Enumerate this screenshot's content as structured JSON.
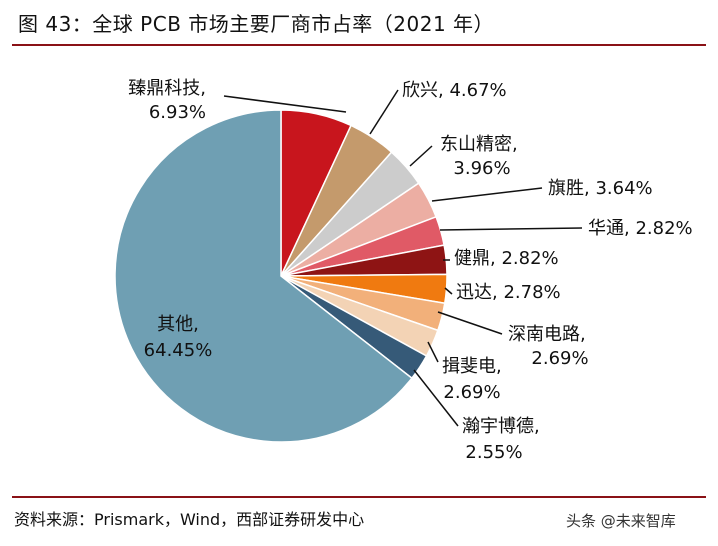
{
  "title": "图 43：全球 PCB 市场主要厂商市占率（2021 年）",
  "source": "资料来源：Prismark，Wind，西部证券研发中心",
  "watermark": "头条 @未来智库",
  "chart_data": {
    "type": "pie",
    "title": "图 43：全球 PCB 市场主要厂商市占率（2021 年）",
    "slices": [
      {
        "label": "臻鼎科技,",
        "value_label": "6.93%",
        "value": 6.93,
        "color": "#c8151d"
      },
      {
        "label": "欣兴,",
        "value_label": "4.67%",
        "value": 4.67,
        "color": "#c49a6c"
      },
      {
        "label": "东山精密,",
        "value_label": "3.96%",
        "value": 3.96,
        "color": "#cccccc"
      },
      {
        "label": "旗胜,",
        "value_label": "3.64%",
        "value": 3.64,
        "color": "#ecaea3"
      },
      {
        "label": "华通,",
        "value_label": "2.82%",
        "value": 2.82,
        "color": "#e05a66"
      },
      {
        "label": "健鼎,",
        "value_label": "2.82%",
        "value": 2.82,
        "color": "#8e1414"
      },
      {
        "label": "迅达,",
        "value_label": "2.78%",
        "value": 2.78,
        "color": "#f07a10"
      },
      {
        "label": "深南电路,",
        "value_label": "2.69%",
        "value": 2.69,
        "color": "#f2b07a"
      },
      {
        "label": "揖斐电,",
        "value_label": "2.69%",
        "value": 2.69,
        "color": "#f3d3b5"
      },
      {
        "label": "瀚宇博德,",
        "value_label": "2.55%",
        "value": 2.55,
        "color": "#365a78"
      },
      {
        "label": "其他,",
        "value_label": "64.45%",
        "value": 64.45,
        "color": "#6f9fb3"
      }
    ]
  }
}
